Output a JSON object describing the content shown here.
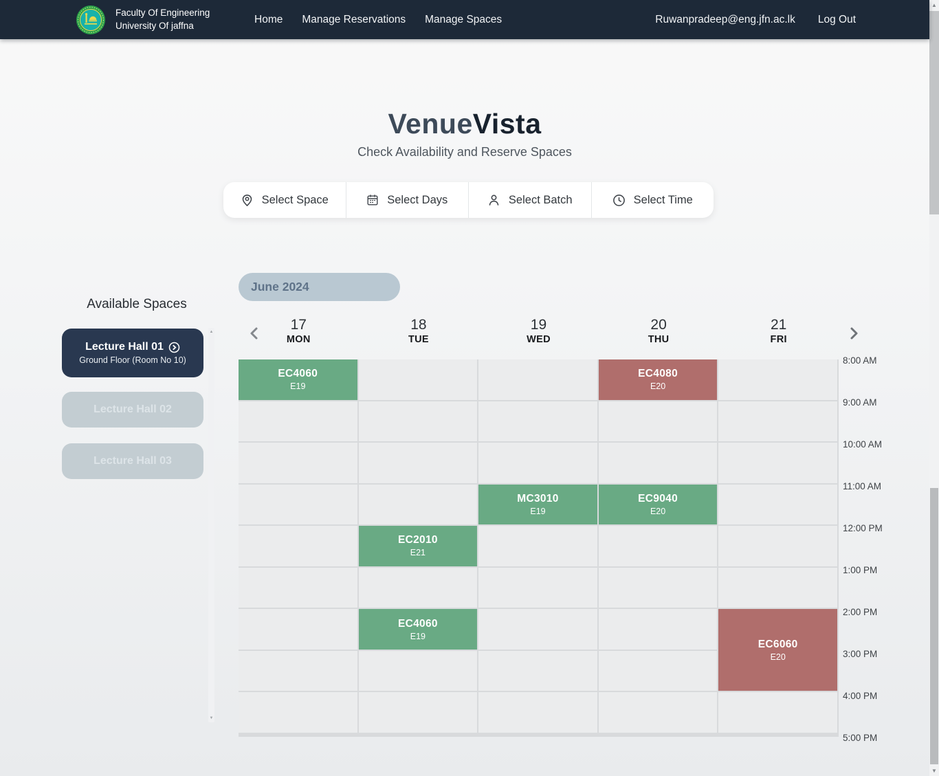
{
  "navbar": {
    "brand": {
      "line1": "Faculty Of Engineering",
      "line2": "University Of jaffna"
    },
    "links": [
      "Home",
      "Manage Reservations",
      "Manage Spaces"
    ],
    "user_email": "Ruwanpradeep@eng.jfn.ac.lk",
    "logout_label": "Log Out"
  },
  "hero": {
    "title_accent": "Venue",
    "title_rest": "Vista",
    "subtitle": "Check Availability and Reserve Spaces"
  },
  "filter_bar": {
    "items": [
      {
        "id": "space",
        "icon": "location-pin-icon",
        "label": "Select Space"
      },
      {
        "id": "days",
        "icon": "calendar-icon",
        "label": "Select Days"
      },
      {
        "id": "batch",
        "icon": "person-icon",
        "label": "Select Batch"
      },
      {
        "id": "time",
        "icon": "clock-icon",
        "label": "Select Time"
      }
    ]
  },
  "sidebar": {
    "heading": "Available Spaces",
    "spaces": [
      {
        "name": "Lecture Hall 01",
        "detail": "Ground Floor (Room No 10)",
        "selected": true
      },
      {
        "name": "Lecture Hall 02",
        "detail": "",
        "selected": false
      },
      {
        "name": "Lecture Hall 03",
        "detail": "",
        "selected": false
      }
    ]
  },
  "calendar": {
    "month_label": "June 2024",
    "days": [
      {
        "date": "17",
        "name": "MON"
      },
      {
        "date": "18",
        "name": "TUE"
      },
      {
        "date": "19",
        "name": "WED"
      },
      {
        "date": "20",
        "name": "THU"
      },
      {
        "date": "21",
        "name": "FRI"
      }
    ],
    "times": [
      "8:00 AM",
      "9:00 AM",
      "10:00 AM",
      "11:00 AM",
      "12:00 PM",
      "1:00 PM",
      "2:00 PM",
      "3:00 PM",
      "4:00 PM",
      "5:00 PM"
    ],
    "events": [
      {
        "title": "EC4060",
        "batch": "E19",
        "day": "MON",
        "start": "8:00 AM",
        "end": "9:00 AM",
        "color": "green"
      },
      {
        "title": "EC4080",
        "batch": "E20",
        "day": "THU",
        "start": "8:00 AM",
        "end": "9:00 AM",
        "color": "red"
      },
      {
        "title": "MC3010",
        "batch": "E19",
        "day": "WED",
        "start": "11:00 AM",
        "end": "12:00 PM",
        "color": "green"
      },
      {
        "title": "EC9040",
        "batch": "E20",
        "day": "THU",
        "start": "11:00 AM",
        "end": "12:00 PM",
        "color": "green"
      },
      {
        "title": "EC2010",
        "batch": "E21",
        "day": "TUE",
        "start": "12:00 PM",
        "end": "1:00 PM",
        "color": "green"
      },
      {
        "title": "EC4060",
        "batch": "E19",
        "day": "TUE",
        "start": "2:00 PM",
        "end": "3:00 PM",
        "color": "green"
      },
      {
        "title": "EC6060",
        "batch": "E20",
        "day": "FRI",
        "start": "2:00 PM",
        "end": "4:00 PM",
        "color": "red"
      }
    ],
    "status_colors": {
      "green": "#69aa84",
      "red": "#b06e6c"
    }
  },
  "theme": {
    "navbar_bg": "#1d2938",
    "selected_card_bg": "#293850",
    "disabled_card_bg": "#c3cdd2",
    "month_pill_bg": "#b9c8d2"
  }
}
